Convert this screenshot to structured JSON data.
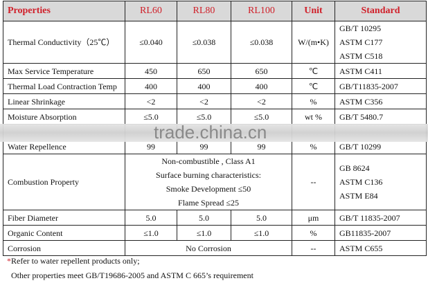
{
  "header": {
    "properties": "Properties",
    "cols": [
      "RL60",
      "RL80",
      "RL100"
    ],
    "unit": "Unit",
    "standard": "Standard"
  },
  "rows": {
    "thermal": {
      "name": "Thermal Conductivity（25℃）",
      "v": [
        "≤0.040",
        "≤0.038",
        "≤0.038"
      ],
      "unit": "W/(m•K)",
      "std": [
        "GB/T 10295",
        "ASTM C177",
        "ASTM C518"
      ]
    },
    "maxtemp": {
      "name": "Max Service Temperature",
      "v": [
        "450",
        "650",
        "650"
      ],
      "unit": "℃",
      "std": "ASTM C411"
    },
    "contraction": {
      "name": "Thermal Load Contraction Temp",
      "v": [
        "400",
        "400",
        "400"
      ],
      "unit": "℃",
      "std": "GB/T11835-2007"
    },
    "shrink": {
      "name": "Linear Shrinkage",
      "v": [
        "<2",
        "<2",
        "<2"
      ],
      "unit": "%",
      "std": "ASTM C356"
    },
    "moisture": {
      "name": "Moisture Absorption",
      "v": [
        "≤5.0",
        "≤5.0",
        "≤5.0"
      ],
      "unit": "wt %",
      "std": "GB/T 5480.7"
    },
    "water": {
      "name": "Water Repellence",
      "v": [
        "99",
        "99",
        "99"
      ],
      "unit": "%",
      "std": "GB/T 10299"
    },
    "combustion": {
      "name": "Combustion Property",
      "v": [
        "Non-combustible , Class A1",
        "Surface burning characteristics:",
        "Smoke Development ≤50",
        "Flame Spread ≤25"
      ],
      "unit": "--",
      "std": [
        "GB 8624",
        "ASTM C136",
        "ASTM E84"
      ]
    },
    "fiber": {
      "name": "Fiber Diameter",
      "v": [
        "5.0",
        "5.0",
        "5.0"
      ],
      "unit": "μm",
      "std": "GB/T 11835-2007"
    },
    "organic": {
      "name": "Organic Content",
      "v": [
        "≤1.0",
        "≤1.0",
        "≤1.0"
      ],
      "unit": "%",
      "std": "GB11835-2007"
    },
    "corrosion": {
      "name": "Corrosion",
      "v": "No Corrosion",
      "unit": "--",
      "std": "ASTM C655"
    }
  },
  "notes": {
    "star": "*",
    "line1": "Refer to water repellent products only;",
    "line2": "Other properties meet GB/T19686-2005 and ASTM C 665’s requirement"
  },
  "watermark": "trade.china.cn",
  "colors": {
    "header_text": "#d0202a",
    "header_bg": "#d9d9d9"
  }
}
